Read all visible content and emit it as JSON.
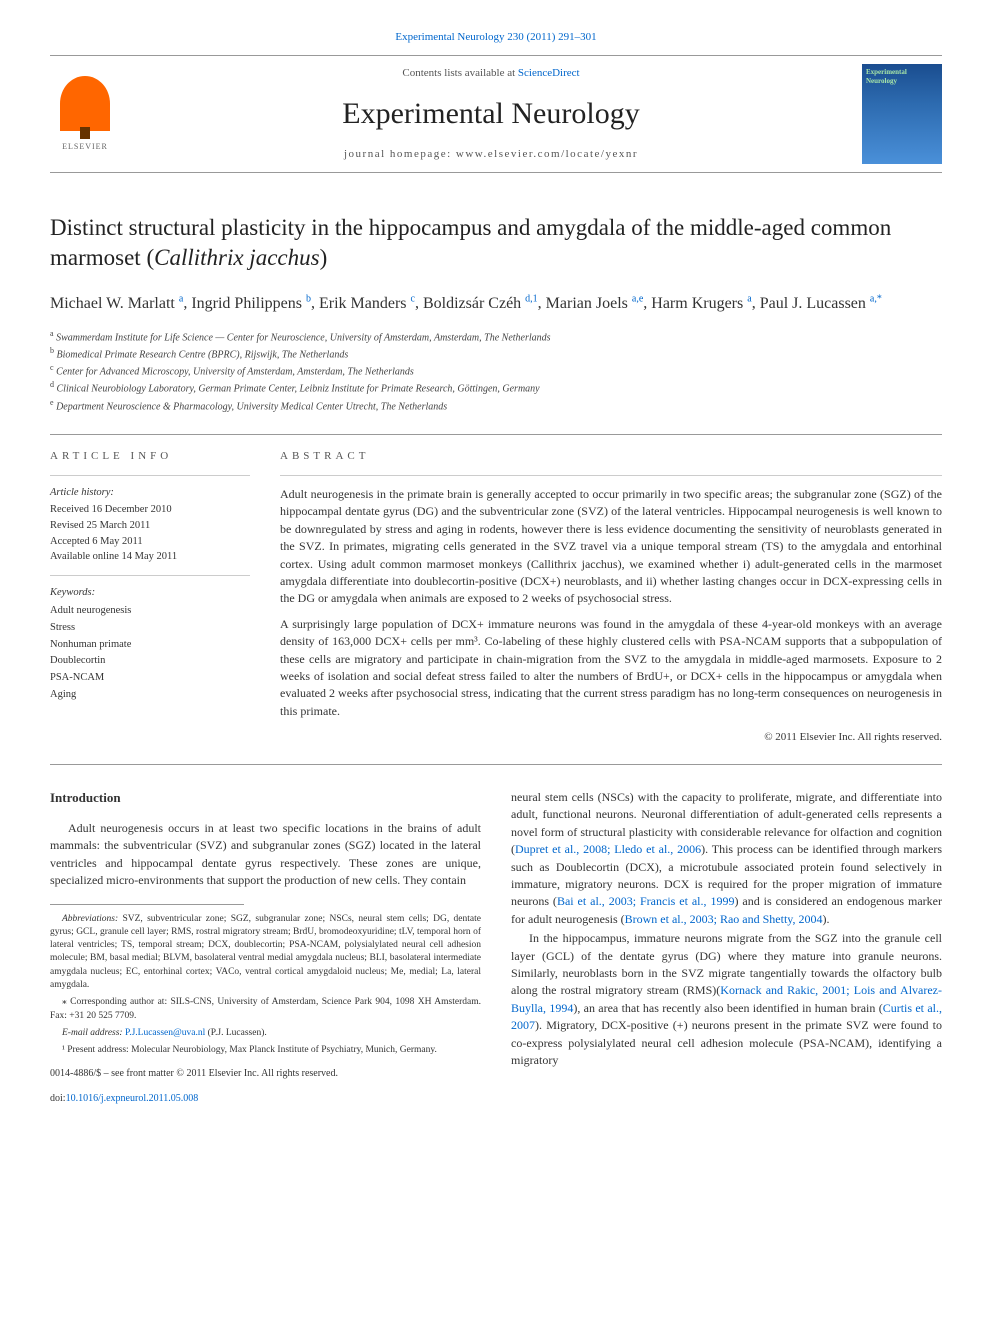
{
  "journal_link": {
    "text": "Experimental Neurology 230 (2011) 291–301",
    "url_color": "#0066cc"
  },
  "header": {
    "contents_prefix": "Contents lists available at ",
    "contents_link": "ScienceDirect",
    "journal_name": "Experimental Neurology",
    "homepage_prefix": "journal homepage: ",
    "homepage_url": "www.elsevier.com/locate/yexnr",
    "publisher_label": "ELSEVIER",
    "cover_title": "Experimental Neurology"
  },
  "article": {
    "title_main": "Distinct structural plasticity in the hippocampus and amygdala of the middle-aged common marmoset (",
    "title_species": "Callithrix jacchus",
    "title_close": ")"
  },
  "authors": [
    {
      "name": "Michael W. Marlatt",
      "sup": "a"
    },
    {
      "name": "Ingrid Philippens",
      "sup": "b"
    },
    {
      "name": "Erik Manders",
      "sup": "c"
    },
    {
      "name": "Boldizsár Czéh",
      "sup": "d,1"
    },
    {
      "name": "Marian Joels",
      "sup": "a,e"
    },
    {
      "name": "Harm Krugers",
      "sup": "a"
    },
    {
      "name": "Paul J. Lucassen",
      "sup": "a,*"
    }
  ],
  "affiliations": [
    {
      "sup": "a",
      "text": "Swammerdam Institute for Life Science — Center for Neuroscience, University of Amsterdam, Amsterdam, The Netherlands"
    },
    {
      "sup": "b",
      "text": "Biomedical Primate Research Centre (BPRC), Rijswijk, The Netherlands"
    },
    {
      "sup": "c",
      "text": "Center for Advanced Microscopy, University of Amsterdam, Amsterdam, The Netherlands"
    },
    {
      "sup": "d",
      "text": "Clinical Neurobiology Laboratory, German Primate Center, Leibniz Institute for Primate Research, Göttingen, Germany"
    },
    {
      "sup": "e",
      "text": "Department Neuroscience & Pharmacology, University Medical Center Utrecht, The Netherlands"
    }
  ],
  "article_info": {
    "header": "article info",
    "history_label": "Article history:",
    "received": "Received 16 December 2010",
    "revised": "Revised 25 March 2011",
    "accepted": "Accepted 6 May 2011",
    "online": "Available online 14 May 2011",
    "keywords_label": "Keywords:",
    "keywords": [
      "Adult neurogenesis",
      "Stress",
      "Nonhuman primate",
      "Doublecortin",
      "PSA-NCAM",
      "Aging"
    ]
  },
  "abstract": {
    "header": "abstract",
    "p1": "Adult neurogenesis in the primate brain is generally accepted to occur primarily in two specific areas; the subgranular zone (SGZ) of the hippocampal dentate gyrus (DG) and the subventricular zone (SVZ) of the lateral ventricles. Hippocampal neurogenesis is well known to be downregulated by stress and aging in rodents, however there is less evidence documenting the sensitivity of neuroblasts generated in the SVZ. In primates, migrating cells generated in the SVZ travel via a unique temporal stream (TS) to the amygdala and entorhinal cortex. Using adult common marmoset monkeys (Callithrix jacchus), we examined whether i) adult-generated cells in the marmoset amygdala differentiate into doublecortin-positive (DCX+) neuroblasts, and ii) whether lasting changes occur in DCX-expressing cells in the DG or amygdala when animals are exposed to 2 weeks of psychosocial stress.",
    "p2": "A surprisingly large population of DCX+ immature neurons was found in the amygdala of these 4-year-old monkeys with an average density of 163,000 DCX+ cells per mm³. Co-labeling of these highly clustered cells with PSA-NCAM supports that a subpopulation of these cells are migratory and participate in chain-migration from the SVZ to the amygdala in middle-aged marmosets. Exposure to 2 weeks of isolation and social defeat stress failed to alter the numbers of BrdU+, or DCX+ cells in the hippocampus or amygdala when evaluated 2 weeks after psychosocial stress, indicating that the current stress paradigm has no long-term consequences on neurogenesis in this primate.",
    "copyright": "© 2011 Elsevier Inc. All rights reserved."
  },
  "introduction": {
    "heading": "Introduction",
    "col1_p1": "Adult neurogenesis occurs in at least two specific locations in the brains of adult mammals: the subventricular (SVZ) and subgranular zones (SGZ) located in the lateral ventricles and hippocampal dentate gyrus respectively. These zones are unique, specialized micro-environments that support the production of new cells. They contain",
    "col2_p1": "neural stem cells (NSCs) with the capacity to proliferate, migrate, and differentiate into adult, functional neurons. Neuronal differentiation of adult-generated cells represents a novel form of structural plasticity with considerable relevance for olfaction and cognition (Dupret et al., 2008; Lledo et al., 2006). This process can be identified through markers such as Doublecortin (DCX), a microtubule associated protein found selectively in immature, migratory neurons. DCX is required for the proper migration of immature neurons (Bai et al., 2003; Francis et al., 1999) and is considered an endogenous marker for adult neurogenesis (Brown et al., 2003; Rao and Shetty, 2004).",
    "col2_p2": "In the hippocampus, immature neurons migrate from the SGZ into the granule cell layer (GCL) of the dentate gyrus (DG) where they mature into granule neurons. Similarly, neuroblasts born in the SVZ migrate tangentially towards the olfactory bulb along the rostral migratory stream (RMS)(Kornack and Rakic, 2001; Lois and Alvarez-Buylla, 1994), an area that has recently also been identified in human brain (Curtis et al., 2007). Migratory, DCX-positive (+) neurons present in the primate SVZ were found to co-express polysialylated neural cell adhesion molecule (PSA-NCAM), identifying a migratory",
    "refs": {
      "r1": "Dupret et al., 2008; Lledo et al., 2006",
      "r2": "Bai et al., 2003; Francis et al., 1999",
      "r3": "Brown et al., 2003; Rao and Shetty, 2004",
      "r4": "Kornack and Rakic, 2001; Lois and Alvarez-Buylla, 1994",
      "r5": "Curtis et al., 2007"
    }
  },
  "footnotes": {
    "abbrev_label": "Abbreviations:",
    "abbrev_text": " SVZ, subventricular zone; SGZ, subgranular zone; NSCs, neural stem cells; DG, dentate gyrus; GCL, granule cell layer; RMS, rostral migratory stream; BrdU, bromodeoxyuridine; tLV, temporal horn of lateral ventricles; TS, temporal stream; DCX, doublecortin; PSA-NCAM, polysialylated neural cell adhesion molecule; BM, basal medial; BLVM, basolateral ventral medial amygdala nucleus; BLI, basolateral intermediate amygdala nucleus; EC, entorhinal cortex; VACo, ventral cortical amygdaloid nucleus; Me, medial; La, lateral amygdala.",
    "corr_label": "⁎ Corresponding author at: ",
    "corr_text": "SILS-CNS, University of Amsterdam, Science Park 904, 1098 XH Amsterdam. Fax: +31 20 525 7709.",
    "email_label": "E-mail address: ",
    "email": "P.J.Lucassen@uva.nl",
    "email_paren": " (P.J. Lucassen).",
    "present_label": "¹ Present address: ",
    "present_text": "Molecular Neurobiology, Max Planck Institute of Psychiatry, Munich, Germany.",
    "issn_line": "0014-4886/$ – see front matter © 2011 Elsevier Inc. All rights reserved.",
    "doi_label": "doi:",
    "doi": "10.1016/j.expneurol.2011.05.008"
  },
  "colors": {
    "link": "#0066cc",
    "text": "#333333",
    "heading": "#222222",
    "border": "#999999",
    "elsevier_orange": "#ff6600",
    "cover_bg_top": "#1a4d8f",
    "cover_bg_bottom": "#4a90d9",
    "cover_text": "#a8e6a8"
  }
}
